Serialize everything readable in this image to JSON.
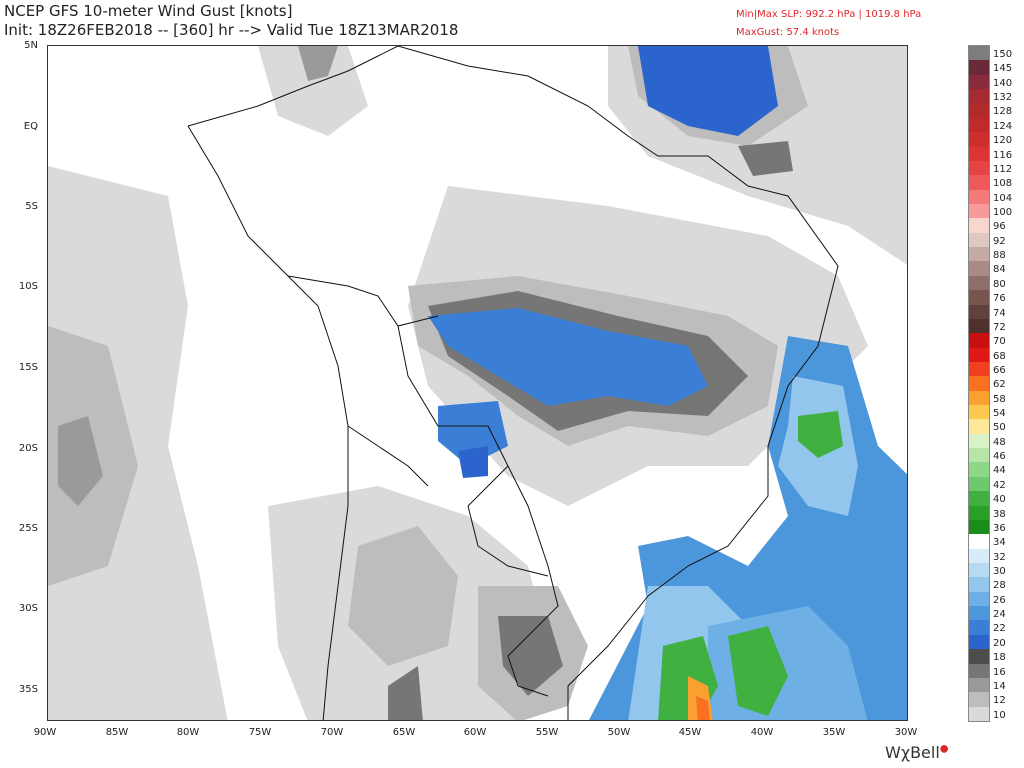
{
  "header": {
    "title": "NCEP GFS 10-meter Wind Gust [knots]",
    "init_line": "Init: 18Z26FEB2018 -- [360] hr --> Valid Tue 18Z13MAR2018",
    "slp_line": "Min|Max SLP: 992.2 hPa | 1019.8 hPa",
    "maxgust_line": "MaxGust: 57.4 knots"
  },
  "map": {
    "lat_labels": [
      "5N",
      "EQ",
      "5S",
      "10S",
      "15S",
      "20S",
      "25S",
      "30S",
      "35S"
    ],
    "lon_labels": [
      "90W",
      "85W",
      "80W",
      "75W",
      "70W",
      "65W",
      "60W",
      "55W",
      "50W",
      "45W",
      "40W",
      "35W",
      "30W"
    ],
    "lon_range": [
      -90,
      -30
    ],
    "lat_range": [
      -37,
      5
    ]
  },
  "colorbar": {
    "levels": [
      "150",
      "145",
      "140",
      "132",
      "128",
      "124",
      "120",
      "116",
      "112",
      "108",
      "104",
      "100",
      "96",
      "92",
      "88",
      "84",
      "80",
      "76",
      "74",
      "72",
      "70",
      "68",
      "66",
      "62",
      "58",
      "54",
      "50",
      "48",
      "46",
      "44",
      "42",
      "40",
      "38",
      "36",
      "34",
      "32",
      "30",
      "28",
      "26",
      "24",
      "22",
      "20",
      "18",
      "16",
      "14",
      "12",
      "10"
    ],
    "colors": [
      "#7d7d7d",
      "#6a2a3a",
      "#8a2a3a",
      "#a52a32",
      "#b22a2a",
      "#c02a2a",
      "#cf2e2e",
      "#dc3434",
      "#e64444",
      "#ee5a5a",
      "#f47a7a",
      "#f89a9a",
      "#f6d6cf",
      "#ddc8c2",
      "#c4aaa2",
      "#a88b84",
      "#8e6e68",
      "#76564f",
      "#60413b",
      "#4e312c",
      "#c81010",
      "#e01818",
      "#f04020",
      "#f87020",
      "#faa030",
      "#fcc850",
      "#fde89a",
      "#d9f2c8",
      "#b5e6a8",
      "#8ed688",
      "#6ec86e",
      "#40b040",
      "#28a028",
      "#1a8c1a",
      "#ffffff",
      "#d8ecf8",
      "#b6daf2",
      "#92c6ec",
      "#6eb0e6",
      "#4c96dc",
      "#3a7ed6",
      "#2a64cc",
      "#4c4c4c",
      "#767676",
      "#9a9a9a",
      "#bdbdbd",
      "#dadada"
    ]
  },
  "logo": {
    "text": "WχBell"
  }
}
